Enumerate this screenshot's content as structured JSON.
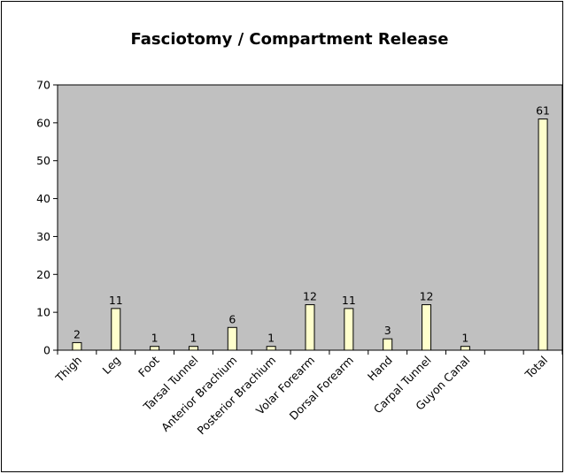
{
  "chart_data": {
    "type": "bar",
    "title": "Fasciotomy / Compartment Release",
    "xlabel": "",
    "ylabel": "",
    "categories": [
      "Thigh",
      "Leg",
      "Foot",
      "Tarsal Tunnel",
      "Anterior Brachium",
      "Posterior Brachium",
      "Volar Forearm",
      "Dorsal Forearm",
      "Hand",
      "Carpal Tunnel",
      "Guyon Canal",
      "",
      "Total"
    ],
    "values": [
      2,
      11,
      1,
      1,
      6,
      1,
      12,
      11,
      3,
      12,
      1,
      null,
      61
    ],
    "data_labels": [
      "2",
      "11",
      "1",
      "1",
      "6",
      "1",
      "12",
      "11",
      "3",
      "12",
      "1",
      "",
      "61"
    ],
    "ylim": [
      0,
      70
    ],
    "yticks": [
      0,
      10,
      20,
      30,
      40,
      50,
      60,
      70
    ],
    "grid": false,
    "legend": "none",
    "colors": {
      "plot_background": "#c0c0c0",
      "bar_fill": "#ffffcc",
      "bar_stroke": "#000000",
      "axis": "#000000",
      "background": "#ffffff"
    }
  }
}
